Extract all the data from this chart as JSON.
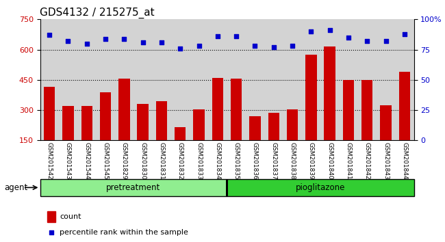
{
  "title": "GDS4132 / 215275_at",
  "categories": [
    "GSM201542",
    "GSM201543",
    "GSM201544",
    "GSM201545",
    "GSM201829",
    "GSM201830",
    "GSM201831",
    "GSM201832",
    "GSM201833",
    "GSM201834",
    "GSM201835",
    "GSM201836",
    "GSM201837",
    "GSM201838",
    "GSM201839",
    "GSM201840",
    "GSM201841",
    "GSM201842",
    "GSM201843",
    "GSM201844"
  ],
  "counts": [
    415,
    320,
    320,
    390,
    455,
    330,
    345,
    215,
    305,
    460,
    455,
    270,
    285,
    305,
    575,
    615,
    450,
    450,
    325,
    490
  ],
  "percentiles": [
    87,
    82,
    80,
    84,
    84,
    81,
    81,
    76,
    78,
    86,
    86,
    78,
    77,
    78,
    90,
    91,
    85,
    82,
    82,
    88
  ],
  "bar_color": "#cc0000",
  "dot_color": "#0000cc",
  "ylim_left": [
    150,
    750
  ],
  "ylim_right": [
    0,
    100
  ],
  "yticks_left": [
    150,
    300,
    450,
    600,
    750
  ],
  "yticks_right": [
    0,
    25,
    50,
    75,
    100
  ],
  "grid_values": [
    300,
    450,
    600
  ],
  "pretreatment_count": 10,
  "pioglitazone_count": 10,
  "agent_label": "agent",
  "pretreatment_label": "pretreatment",
  "pioglitazone_label": "pioglitazone",
  "legend_count_label": "count",
  "legend_percentile_label": "percentile rank within the sample",
  "background_color": "#ffffff",
  "bar_area_color": "#d3d3d3",
  "pretreatment_color": "#90ee90",
  "pioglitazone_color": "#32cd32",
  "title_fontsize": 11,
  "tick_fontsize": 8,
  "label_fontsize": 9
}
